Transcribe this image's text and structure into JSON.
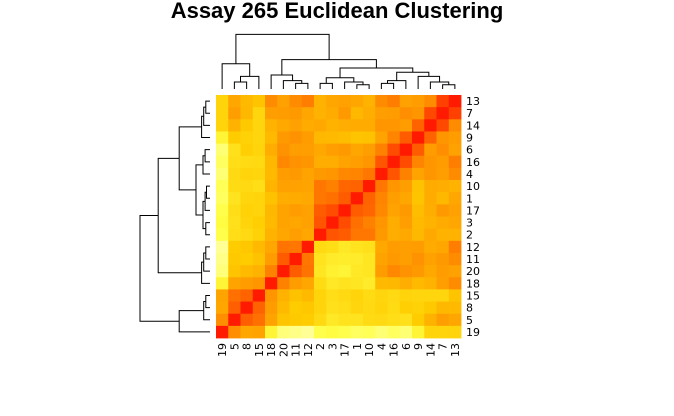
{
  "chart_data": {
    "type": "heatmap",
    "title": "Assay 265 Euclidean Clustering",
    "column_labels": [
      "19",
      "5",
      "8",
      "15",
      "18",
      "20",
      "11",
      "12",
      "2",
      "3",
      "17",
      "1",
      "10",
      "4",
      "16",
      "6",
      "9",
      "14",
      "7",
      "13"
    ],
    "row_labels": [
      "13",
      "7",
      "14",
      "9",
      "6",
      "16",
      "4",
      "10",
      "1",
      "17",
      "3",
      "2",
      "12",
      "11",
      "20",
      "18",
      "15",
      "8",
      "5",
      "19"
    ],
    "color_scale": [
      "#ff0000",
      "#ff5500",
      "#ff9900",
      "#ffcc00",
      "#ffff44",
      "#ffffcc"
    ],
    "value_range": [
      0,
      1
    ],
    "values": [
      [
        0.63,
        0.45,
        0.53,
        0.57,
        0.36,
        0.43,
        0.36,
        0.32,
        0.5,
        0.45,
        0.43,
        0.45,
        0.5,
        0.36,
        0.32,
        0.43,
        0.41,
        0.36,
        0.15,
        0.06
      ],
      [
        0.63,
        0.42,
        0.52,
        0.64,
        0.42,
        0.41,
        0.4,
        0.45,
        0.5,
        0.47,
        0.4,
        0.52,
        0.48,
        0.42,
        0.41,
        0.37,
        0.39,
        0.17,
        0.06,
        0.15
      ],
      [
        0.63,
        0.5,
        0.59,
        0.64,
        0.5,
        0.46,
        0.43,
        0.47,
        0.46,
        0.5,
        0.48,
        0.47,
        0.47,
        0.39,
        0.39,
        0.41,
        0.24,
        0.06,
        0.17,
        0.36
      ],
      [
        0.76,
        0.6,
        0.62,
        0.64,
        0.53,
        0.4,
        0.38,
        0.41,
        0.52,
        0.53,
        0.54,
        0.57,
        0.56,
        0.44,
        0.34,
        0.22,
        0.06,
        0.24,
        0.39,
        0.41
      ],
      [
        0.87,
        0.68,
        0.61,
        0.63,
        0.48,
        0.38,
        0.42,
        0.42,
        0.46,
        0.42,
        0.4,
        0.45,
        0.42,
        0.33,
        0.18,
        0.06,
        0.22,
        0.41,
        0.37,
        0.43
      ],
      [
        0.84,
        0.67,
        0.66,
        0.65,
        0.52,
        0.35,
        0.38,
        0.39,
        0.48,
        0.48,
        0.44,
        0.42,
        0.39,
        0.2,
        0.06,
        0.18,
        0.34,
        0.39,
        0.41,
        0.32
      ],
      [
        0.87,
        0.65,
        0.63,
        0.64,
        0.53,
        0.41,
        0.4,
        0.44,
        0.4,
        0.39,
        0.35,
        0.34,
        0.3,
        0.06,
        0.2,
        0.33,
        0.44,
        0.39,
        0.42,
        0.36
      ],
      [
        0.83,
        0.66,
        0.65,
        0.67,
        0.51,
        0.43,
        0.43,
        0.44,
        0.3,
        0.33,
        0.25,
        0.24,
        0.06,
        0.3,
        0.39,
        0.42,
        0.56,
        0.47,
        0.48,
        0.5
      ],
      [
        0.84,
        0.69,
        0.64,
        0.63,
        0.56,
        0.48,
        0.47,
        0.46,
        0.3,
        0.28,
        0.22,
        0.06,
        0.24,
        0.34,
        0.42,
        0.45,
        0.57,
        0.47,
        0.52,
        0.45
      ],
      [
        0.81,
        0.67,
        0.62,
        0.63,
        0.52,
        0.44,
        0.41,
        0.43,
        0.22,
        0.18,
        0.06,
        0.22,
        0.25,
        0.35,
        0.44,
        0.4,
        0.54,
        0.48,
        0.4,
        0.43
      ],
      [
        0.79,
        0.68,
        0.63,
        0.61,
        0.53,
        0.44,
        0.45,
        0.43,
        0.2,
        0.06,
        0.18,
        0.28,
        0.33,
        0.39,
        0.48,
        0.42,
        0.53,
        0.5,
        0.47,
        0.45
      ],
      [
        0.81,
        0.67,
        0.65,
        0.62,
        0.5,
        0.45,
        0.42,
        0.45,
        0.06,
        0.2,
        0.22,
        0.3,
        0.3,
        0.4,
        0.48,
        0.46,
        0.52,
        0.46,
        0.5,
        0.5
      ],
      [
        0.92,
        0.6,
        0.58,
        0.53,
        0.45,
        0.29,
        0.3,
        0.06,
        0.65,
        0.67,
        0.71,
        0.69,
        0.68,
        0.46,
        0.41,
        0.42,
        0.41,
        0.47,
        0.45,
        0.32
      ],
      [
        0.9,
        0.59,
        0.6,
        0.56,
        0.41,
        0.22,
        0.06,
        0.3,
        0.69,
        0.72,
        0.73,
        0.72,
        0.7,
        0.44,
        0.4,
        0.42,
        0.38,
        0.43,
        0.4,
        0.36
      ],
      [
        0.88,
        0.57,
        0.53,
        0.5,
        0.33,
        0.06,
        0.22,
        0.29,
        0.7,
        0.74,
        0.76,
        0.71,
        0.7,
        0.41,
        0.35,
        0.38,
        0.4,
        0.46,
        0.41,
        0.43
      ],
      [
        0.76,
        0.44,
        0.41,
        0.39,
        0.06,
        0.33,
        0.41,
        0.45,
        0.66,
        0.71,
        0.69,
        0.7,
        0.72,
        0.53,
        0.52,
        0.48,
        0.53,
        0.5,
        0.42,
        0.36
      ],
      [
        0.44,
        0.28,
        0.24,
        0.06,
        0.39,
        0.5,
        0.56,
        0.53,
        0.63,
        0.67,
        0.65,
        0.63,
        0.66,
        0.64,
        0.65,
        0.63,
        0.64,
        0.64,
        0.64,
        0.57
      ],
      [
        0.45,
        0.23,
        0.06,
        0.24,
        0.41,
        0.53,
        0.6,
        0.58,
        0.63,
        0.68,
        0.67,
        0.64,
        0.65,
        0.63,
        0.66,
        0.61,
        0.62,
        0.59,
        0.52,
        0.53
      ],
      [
        0.37,
        0.06,
        0.23,
        0.28,
        0.44,
        0.57,
        0.59,
        0.6,
        0.65,
        0.71,
        0.69,
        0.69,
        0.66,
        0.65,
        0.67,
        0.68,
        0.6,
        0.5,
        0.42,
        0.45
      ],
      [
        0.06,
        0.37,
        0.45,
        0.44,
        0.76,
        0.88,
        0.9,
        0.92,
        0.81,
        0.79,
        0.81,
        0.84,
        0.83,
        0.87,
        0.84,
        0.87,
        0.76,
        0.63,
        0.63,
        0.63
      ]
    ]
  }
}
